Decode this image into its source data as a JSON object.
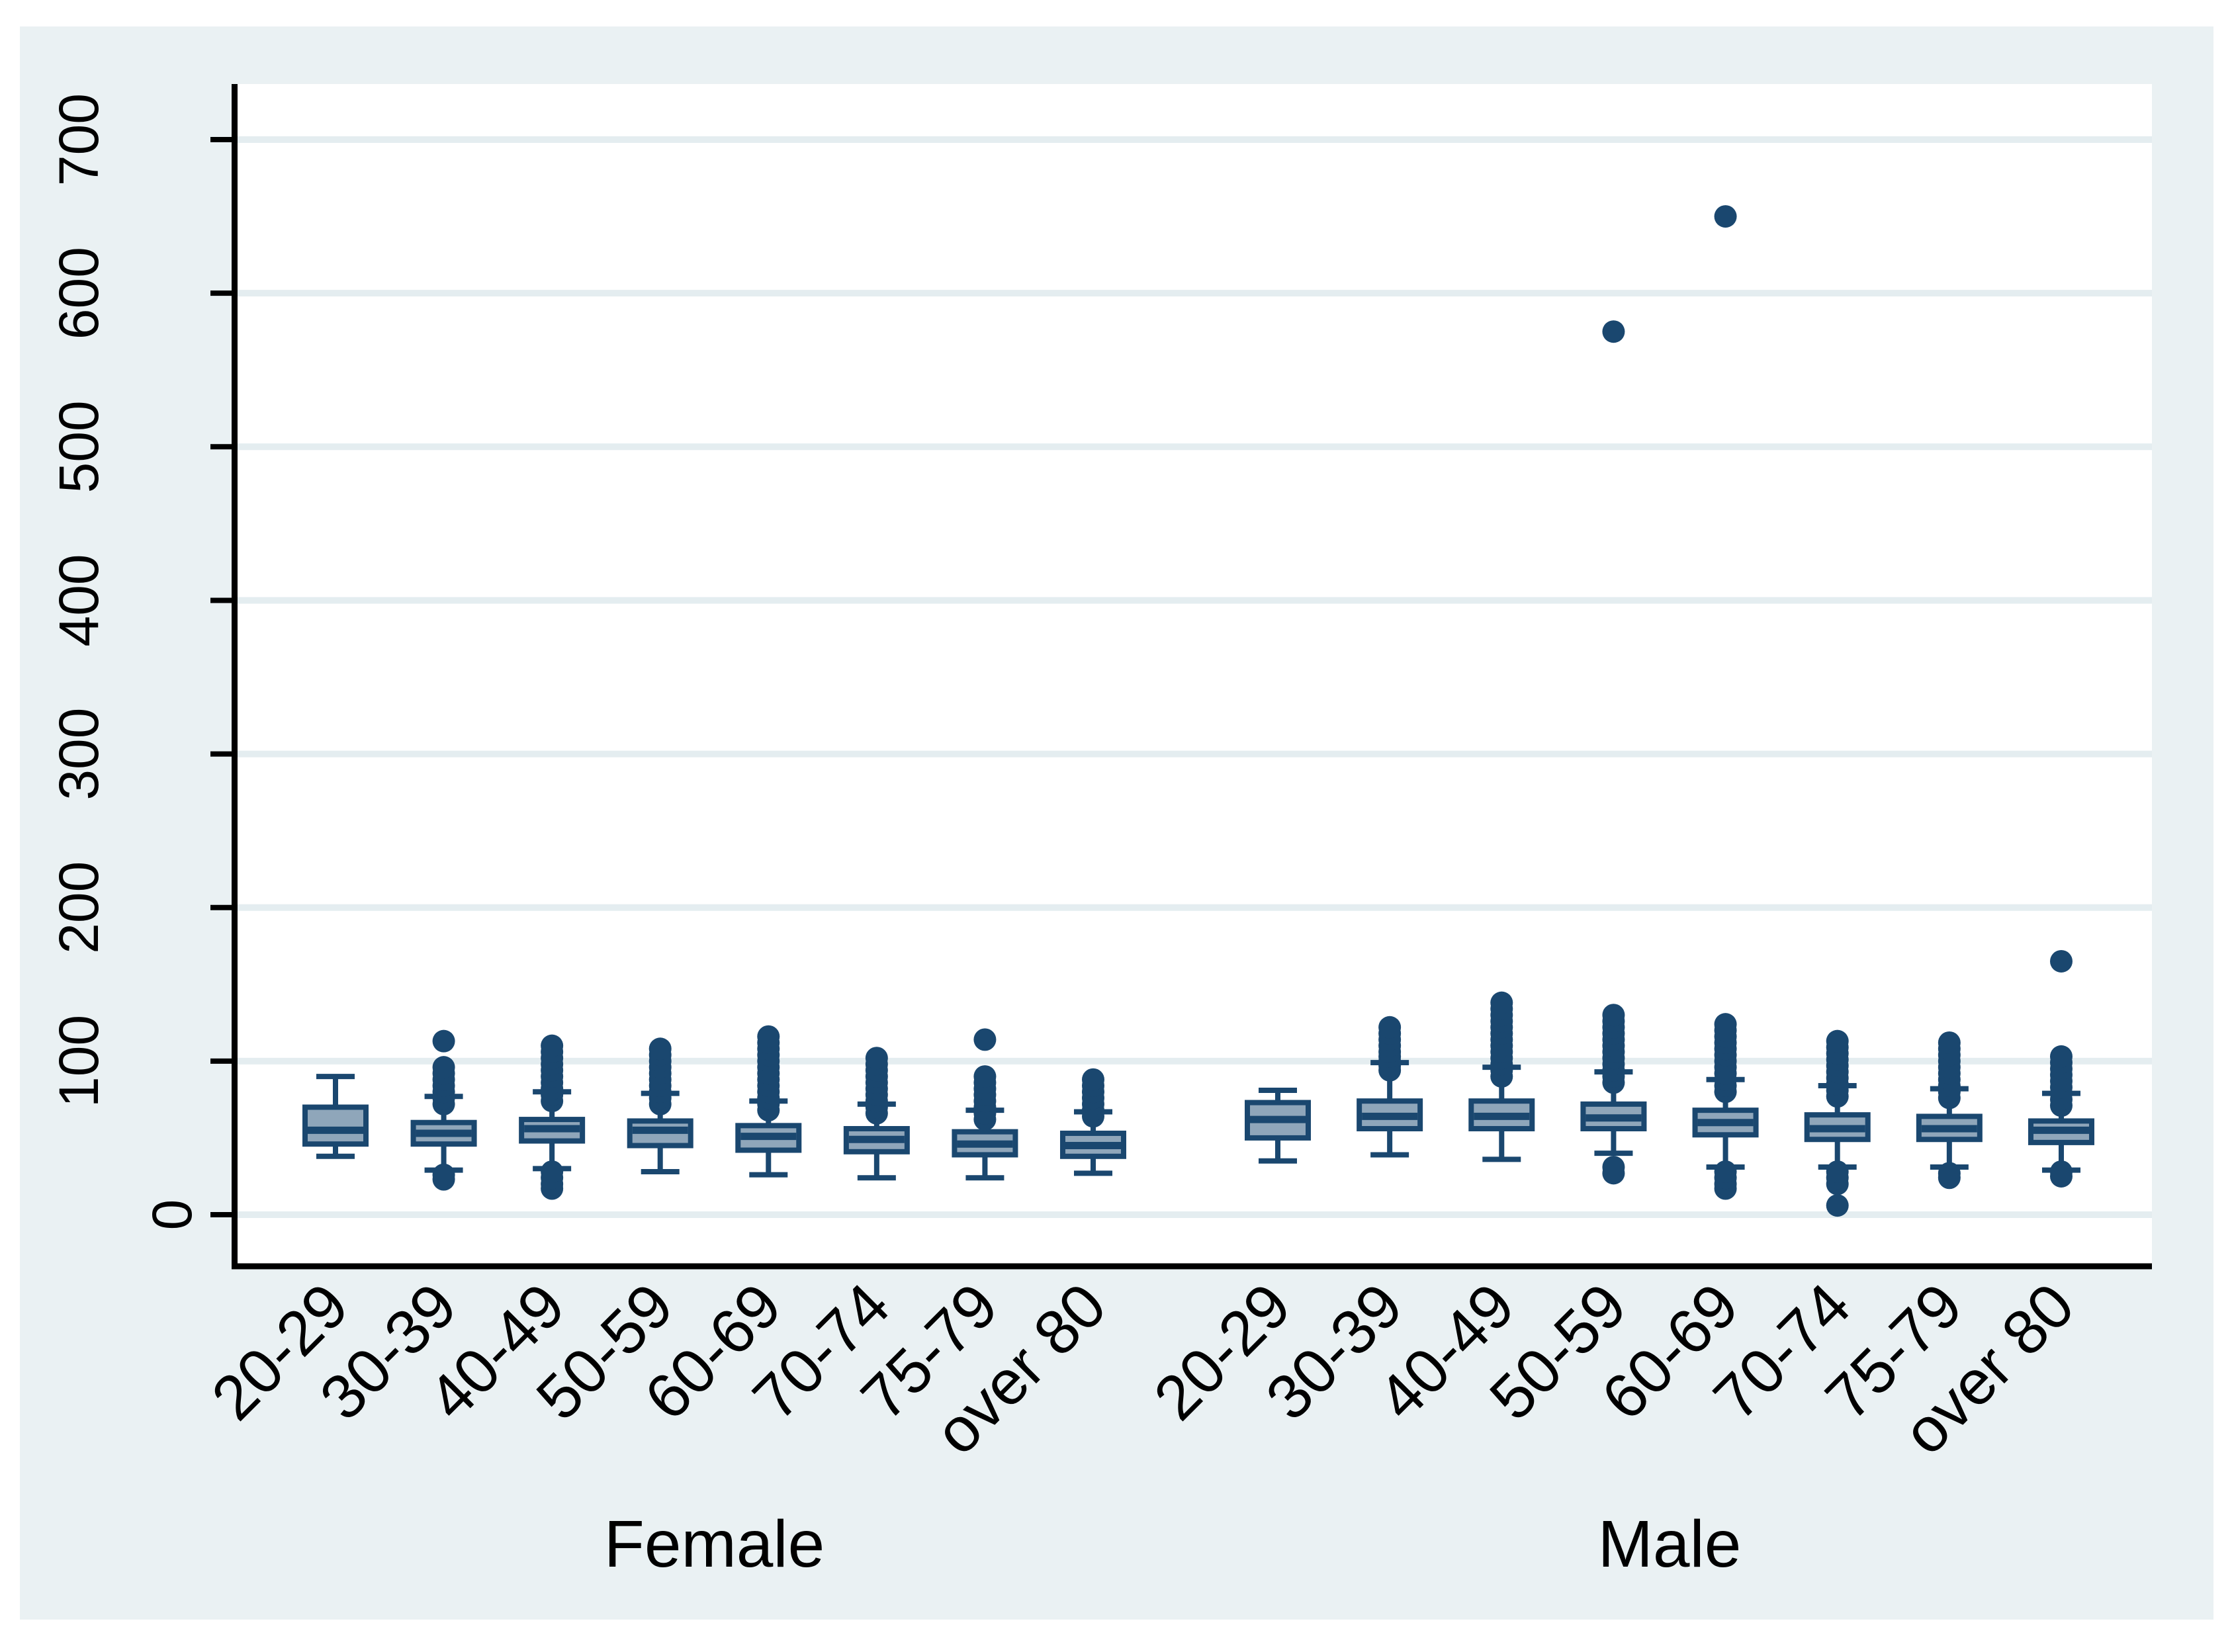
{
  "style": {
    "page_background": "#ffffff",
    "graph_region_color": "#eaf1f3",
    "plot_background": "#ffffff",
    "gridline_color": "#e4edf0",
    "axis_color": "#000000",
    "text_color": "#000000",
    "box_border_color": "#1a476f",
    "box_fill_color": "#8fa6ba",
    "outlier_color": "#1a476f"
  },
  "y_axis": {
    "ticks": [
      0,
      100,
      200,
      300,
      400,
      500,
      600,
      700
    ],
    "min": 0,
    "max": 730
  },
  "x_axis": {
    "categories": [
      "20-29",
      "30-39",
      "40-49",
      "50-59",
      "60-69",
      "70-74",
      "75-79",
      "over 80"
    ]
  },
  "chart_data": {
    "type": "box",
    "title": "",
    "xlabel": "",
    "ylabel": "",
    "ylim": [
      0,
      730
    ],
    "yticks": [
      0,
      100,
      200,
      300,
      400,
      500,
      600,
      700
    ],
    "grid": "horizontal",
    "legend_position": "none",
    "groups": [
      {
        "name": "Female",
        "boxes": [
          {
            "category": "20-29",
            "whisker_low": 38,
            "q1": 46,
            "median": 55,
            "q3": 70,
            "whisker_high": 90,
            "outliers": []
          },
          {
            "category": "30-39",
            "whisker_low": 29,
            "q1": 46,
            "median": 53,
            "q3": 60,
            "whisker_high": 77,
            "outliers": [
              23,
              26,
              72,
              76,
              80,
              84,
              88,
              92,
              96,
              113
            ]
          },
          {
            "category": "40-49",
            "whisker_low": 30,
            "q1": 48,
            "median": 56,
            "q3": 62,
            "whisker_high": 80,
            "outliers": [
              17,
              20,
              24,
              28,
              74,
              78,
              82,
              86,
              90,
              94,
              98,
              102,
              106,
              110
            ]
          },
          {
            "category": "50-59",
            "whisker_low": 28,
            "q1": 45,
            "median": 55,
            "q3": 61,
            "whisker_high": 79,
            "outliers": [
              72,
              76,
              80,
              84,
              88,
              92,
              96,
              100,
              104,
              108
            ]
          },
          {
            "category": "60-69",
            "whisker_low": 26,
            "q1": 42,
            "median": 51,
            "q3": 58,
            "whisker_high": 74,
            "outliers": [
              68,
              72,
              76,
              80,
              84,
              88,
              92,
              96,
              100,
              104,
              108,
              112,
              116
            ]
          },
          {
            "category": "70-74",
            "whisker_low": 24,
            "q1": 41,
            "median": 49,
            "q3": 56,
            "whisker_high": 72,
            "outliers": [
              66,
              70,
              74,
              78,
              82,
              86,
              90,
              94,
              98,
              102
            ]
          },
          {
            "category": "75-79",
            "whisker_low": 24,
            "q1": 39,
            "median": 46,
            "q3": 54,
            "whisker_high": 68,
            "outliers": [
              62,
              66,
              70,
              74,
              78,
              82,
              86,
              90,
              114
            ]
          },
          {
            "category": "over 80",
            "whisker_low": 27,
            "q1": 38,
            "median": 45,
            "q3": 53,
            "whisker_high": 67,
            "outliers": [
              64,
              68,
              72,
              76,
              80,
              84,
              88
            ]
          }
        ]
      },
      {
        "name": "Male",
        "boxes": [
          {
            "category": "20-29",
            "whisker_low": 35,
            "q1": 50,
            "median": 62,
            "q3": 73,
            "whisker_high": 81,
            "outliers": []
          },
          {
            "category": "30-39",
            "whisker_low": 39,
            "q1": 56,
            "median": 64,
            "q3": 74,
            "whisker_high": 99,
            "outliers": [
              94,
              97,
              100,
              103,
              106,
              110,
              114,
              118,
              122
            ]
          },
          {
            "category": "40-49",
            "whisker_low": 36,
            "q1": 56,
            "median": 64,
            "q3": 74,
            "whisker_high": 96,
            "outliers": [
              90,
              94,
              98,
              102,
              106,
              110,
              114,
              118,
              122,
              126,
              130,
              134,
              138
            ]
          },
          {
            "category": "50-59",
            "whisker_low": 40,
            "q1": 56,
            "median": 63,
            "q3": 72,
            "whisker_high": 93,
            "outliers": [
              27,
              31,
              86,
              90,
              94,
              98,
              102,
              106,
              110,
              114,
              118,
              122,
              126,
              130,
              575
            ]
          },
          {
            "category": "60-69",
            "whisker_low": 31,
            "q1": 52,
            "median": 60,
            "q3": 68,
            "whisker_high": 88,
            "outliers": [
              17,
              20,
              24,
              28,
              80,
              84,
              88,
              92,
              96,
              100,
              104,
              108,
              112,
              116,
              120,
              124,
              650
            ]
          },
          {
            "category": "70-74",
            "whisker_low": 31,
            "q1": 49,
            "median": 56,
            "q3": 65,
            "whisker_high": 84,
            "outliers": [
              6,
              20,
              24,
              28,
              77,
              81,
              85,
              89,
              93,
              97,
              101,
              105,
              109,
              113
            ]
          },
          {
            "category": "75-79",
            "whisker_low": 31,
            "q1": 49,
            "median": 56,
            "q3": 64,
            "whisker_high": 82,
            "outliers": [
              24,
              27,
              76,
              80,
              84,
              88,
              92,
              96,
              100,
              104,
              108,
              112
            ]
          },
          {
            "category": "over 80",
            "whisker_low": 29,
            "q1": 47,
            "median": 55,
            "q3": 61,
            "whisker_high": 79,
            "outliers": [
              25,
              28,
              71,
              75,
              79,
              83,
              87,
              91,
              95,
              99,
              103,
              165
            ]
          }
        ]
      }
    ]
  }
}
